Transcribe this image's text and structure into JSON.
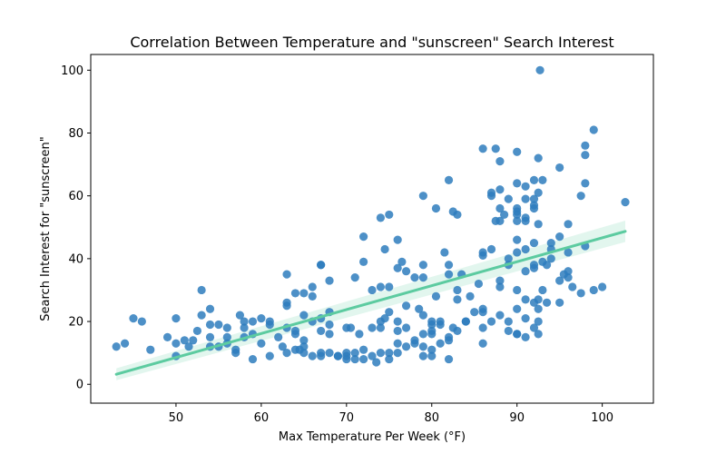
{
  "chart_data": {
    "type": "scatter",
    "title": "Correlation Between Temperature and \"sunscreen\" Search Interest",
    "xlabel": "Max Temperature Per Week (°F)",
    "ylabel": "Search Interest for \"sunscreen\"",
    "xlim": [
      40,
      106
    ],
    "ylim": [
      -6,
      105
    ],
    "xticks": [
      50,
      60,
      70,
      80,
      90,
      100
    ],
    "yticks": [
      0,
      20,
      40,
      60,
      80,
      100
    ],
    "grid": false,
    "colors": {
      "points": "#2e7dbd",
      "regression": "#5ccba0",
      "band": "#5ccba0"
    },
    "regression": {
      "x": [
        43,
        102.7
      ],
      "y": [
        3.2,
        48.7
      ],
      "ci_start": [
        1.3,
        5.1
      ],
      "ci_end": [
        45.3,
        52.1
      ]
    },
    "points": [
      [
        43,
        12
      ],
      [
        44,
        13
      ],
      [
        45,
        21
      ],
      [
        46,
        20
      ],
      [
        47,
        11
      ],
      [
        49,
        15
      ],
      [
        50,
        21
      ],
      [
        50,
        13
      ],
      [
        50,
        9
      ],
      [
        51,
        14
      ],
      [
        51.5,
        12
      ],
      [
        52,
        14
      ],
      [
        52.5,
        17
      ],
      [
        53,
        30
      ],
      [
        53,
        22
      ],
      [
        54,
        12
      ],
      [
        54,
        15
      ],
      [
        54,
        19
      ],
      [
        54,
        24
      ],
      [
        55,
        19
      ],
      [
        55,
        12
      ],
      [
        56,
        15
      ],
      [
        56,
        18
      ],
      [
        56,
        13
      ],
      [
        57,
        11
      ],
      [
        57,
        10
      ],
      [
        57.5,
        22
      ],
      [
        58,
        20
      ],
      [
        58,
        18
      ],
      [
        58,
        15
      ],
      [
        59,
        20
      ],
      [
        59,
        16
      ],
      [
        59,
        8
      ],
      [
        60,
        21
      ],
      [
        60,
        13
      ],
      [
        61,
        19
      ],
      [
        61,
        20
      ],
      [
        61,
        9
      ],
      [
        62,
        15
      ],
      [
        62.5,
        12
      ],
      [
        63,
        35
      ],
      [
        63,
        26
      ],
      [
        63,
        25
      ],
      [
        63,
        18
      ],
      [
        63,
        10
      ],
      [
        64,
        29
      ],
      [
        64,
        17
      ],
      [
        64,
        16
      ],
      [
        64,
        11
      ],
      [
        64.5,
        11
      ],
      [
        65,
        29
      ],
      [
        65,
        22
      ],
      [
        65,
        14
      ],
      [
        65,
        12
      ],
      [
        65,
        10
      ],
      [
        66,
        28
      ],
      [
        66,
        31
      ],
      [
        66,
        20
      ],
      [
        66,
        9
      ],
      [
        67,
        38
      ],
      [
        67,
        38
      ],
      [
        67,
        21
      ],
      [
        67,
        17
      ],
      [
        67,
        10
      ],
      [
        67,
        9
      ],
      [
        68,
        33
      ],
      [
        68,
        23
      ],
      [
        68,
        19
      ],
      [
        68,
        10
      ],
      [
        68,
        16
      ],
      [
        69,
        9
      ],
      [
        69,
        9
      ],
      [
        70,
        18
      ],
      [
        70,
        10
      ],
      [
        70,
        8
      ],
      [
        70,
        9
      ],
      [
        70.5,
        18
      ],
      [
        71,
        34
      ],
      [
        71,
        8
      ],
      [
        71,
        10
      ],
      [
        71.5,
        16
      ],
      [
        72,
        47
      ],
      [
        72,
        39
      ],
      [
        72,
        11
      ],
      [
        72,
        8
      ],
      [
        73,
        30
      ],
      [
        73,
        18
      ],
      [
        73,
        9
      ],
      [
        73.5,
        7
      ],
      [
        74,
        53
      ],
      [
        74,
        31
      ],
      [
        74,
        20
      ],
      [
        74,
        18
      ],
      [
        74,
        10
      ],
      [
        74.5,
        21
      ],
      [
        74.5,
        43
      ],
      [
        75,
        54
      ],
      [
        75,
        31
      ],
      [
        75,
        23
      ],
      [
        75,
        10
      ],
      [
        75,
        8
      ],
      [
        76,
        37
      ],
      [
        76,
        46
      ],
      [
        76,
        20
      ],
      [
        76,
        17
      ],
      [
        76,
        13
      ],
      [
        76,
        10
      ],
      [
        76.5,
        39
      ],
      [
        77,
        36
      ],
      [
        77,
        25
      ],
      [
        77,
        18
      ],
      [
        77,
        12
      ],
      [
        78,
        34
      ],
      [
        78,
        13
      ],
      [
        78,
        14
      ],
      [
        78.5,
        24
      ],
      [
        79,
        60
      ],
      [
        79,
        38
      ],
      [
        79,
        34
      ],
      [
        79,
        22
      ],
      [
        79,
        16
      ],
      [
        79,
        12
      ],
      [
        79,
        9
      ],
      [
        80,
        20
      ],
      [
        80,
        19
      ],
      [
        80,
        17
      ],
      [
        80,
        16
      ],
      [
        80,
        11
      ],
      [
        80,
        9
      ],
      [
        80.5,
        56
      ],
      [
        80.5,
        28
      ],
      [
        81,
        20
      ],
      [
        81,
        19
      ],
      [
        81,
        13
      ],
      [
        81.5,
        42
      ],
      [
        82,
        65
      ],
      [
        82,
        38
      ],
      [
        82,
        35
      ],
      [
        82,
        15
      ],
      [
        82,
        14
      ],
      [
        82,
        8
      ],
      [
        82.5,
        55
      ],
      [
        82.5,
        18
      ],
      [
        83,
        30
      ],
      [
        83,
        27
      ],
      [
        83,
        17
      ],
      [
        83,
        54
      ],
      [
        83.5,
        35
      ],
      [
        84,
        20
      ],
      [
        84,
        20
      ],
      [
        84.5,
        28
      ],
      [
        85,
        23
      ],
      [
        85.5,
        32
      ],
      [
        86,
        75
      ],
      [
        86,
        42
      ],
      [
        86,
        41
      ],
      [
        86,
        24
      ],
      [
        86,
        23
      ],
      [
        86,
        18
      ],
      [
        86,
        13
      ],
      [
        87,
        61
      ],
      [
        87,
        60
      ],
      [
        87,
        43
      ],
      [
        87,
        20
      ],
      [
        87.5,
        75
      ],
      [
        87.5,
        52
      ],
      [
        88,
        71
      ],
      [
        88,
        62
      ],
      [
        88,
        56
      ],
      [
        88,
        52
      ],
      [
        88,
        33
      ],
      [
        88,
        31
      ],
      [
        88,
        22
      ],
      [
        88.5,
        54
      ],
      [
        89,
        59
      ],
      [
        89,
        40
      ],
      [
        89,
        38
      ],
      [
        89,
        20
      ],
      [
        89,
        17
      ],
      [
        90,
        74
      ],
      [
        90,
        64
      ],
      [
        90,
        56
      ],
      [
        90,
        55
      ],
      [
        90,
        54
      ],
      [
        90,
        52
      ],
      [
        90,
        46
      ],
      [
        90,
        42
      ],
      [
        90,
        30
      ],
      [
        90,
        24
      ],
      [
        90,
        16
      ],
      [
        90,
        16
      ],
      [
        91,
        63
      ],
      [
        91,
        59
      ],
      [
        91,
        53
      ],
      [
        91,
        52
      ],
      [
        91,
        43
      ],
      [
        91,
        36
      ],
      [
        91,
        27
      ],
      [
        91,
        21
      ],
      [
        91,
        15
      ],
      [
        92,
        65
      ],
      [
        92,
        59
      ],
      [
        92,
        57
      ],
      [
        92,
        56
      ],
      [
        92,
        45
      ],
      [
        92,
        38
      ],
      [
        92,
        37
      ],
      [
        92,
        26
      ],
      [
        92,
        18
      ],
      [
        92.5,
        72
      ],
      [
        92.5,
        61
      ],
      [
        92.5,
        51
      ],
      [
        92.5,
        27
      ],
      [
        92.5,
        24
      ],
      [
        92.5,
        20
      ],
      [
        92.5,
        16
      ],
      [
        92.7,
        100
      ],
      [
        93,
        65
      ],
      [
        93,
        39
      ],
      [
        93,
        30
      ],
      [
        93.5,
        38
      ],
      [
        93.5,
        26
      ],
      [
        94,
        45
      ],
      [
        94,
        43
      ],
      [
        94,
        40
      ],
      [
        95,
        69
      ],
      [
        95,
        47
      ],
      [
        95,
        33
      ],
      [
        95,
        26
      ],
      [
        95.5,
        35
      ],
      [
        96,
        51
      ],
      [
        96,
        42
      ],
      [
        96,
        36
      ],
      [
        96,
        34
      ],
      [
        96.5,
        31
      ],
      [
        97.5,
        60
      ],
      [
        97.5,
        29
      ],
      [
        98,
        76
      ],
      [
        98,
        73
      ],
      [
        98,
        64
      ],
      [
        98,
        44
      ],
      [
        99,
        81
      ],
      [
        99,
        30
      ],
      [
        100,
        31
      ],
      [
        102.7,
        58
      ]
    ]
  }
}
